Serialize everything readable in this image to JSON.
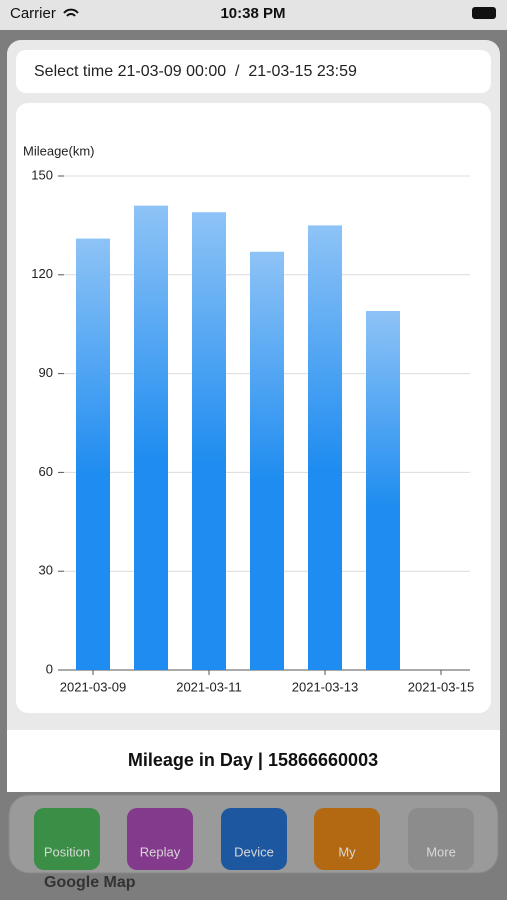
{
  "status_bar": {
    "carrier": "Carrier",
    "time": "10:38 PM"
  },
  "filter": "Select time 21-03-09 00:00  /  21-03-15 23:59",
  "chart_data": {
    "type": "bar",
    "y_label": "Mileage(km)",
    "categories": [
      "2021-03-09",
      null,
      "2021-03-11",
      null,
      "2021-03-13",
      null,
      "2021-03-15"
    ],
    "values": [
      131,
      141,
      139,
      127,
      135,
      109,
      null
    ],
    "color": "#1e8cf0",
    "ylim": [
      0,
      150
    ],
    "yticks": [
      0,
      30,
      60,
      90,
      120,
      150
    ],
    "grid": true
  },
  "footer_title": "Mileage in Day | 15866660003",
  "tabs": [
    "Position",
    "Replay",
    "Device",
    "My",
    "More"
  ],
  "map_label": "Google Map"
}
